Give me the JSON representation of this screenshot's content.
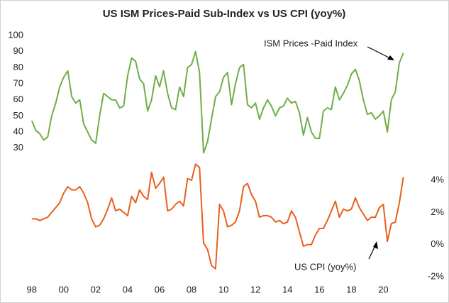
{
  "chart_data": {
    "type": "line",
    "title": "US ISM Prices-Paid Sub-Index vs US CPI (yoy%)",
    "annotations": [
      "ISM  Prices -Paid Index",
      "US CPI (yoy%)"
    ],
    "x": [
      1998,
      1998.25,
      1998.5,
      1998.75,
      1999,
      1999.25,
      1999.5,
      1999.75,
      2000,
      2000.25,
      2000.5,
      2000.75,
      2001,
      2001.25,
      2001.5,
      2001.75,
      2002,
      2002.25,
      2002.5,
      2002.75,
      2003,
      2003.25,
      2003.5,
      2003.75,
      2004,
      2004.25,
      2004.5,
      2004.75,
      2005,
      2005.25,
      2005.5,
      2005.75,
      2006,
      2006.25,
      2006.5,
      2006.75,
      2007,
      2007.25,
      2007.5,
      2007.75,
      2008,
      2008.25,
      2008.5,
      2008.75,
      2009,
      2009.25,
      2009.5,
      2009.75,
      2010,
      2010.25,
      2010.5,
      2010.75,
      2011,
      2011.25,
      2011.5,
      2011.75,
      2012,
      2012.25,
      2012.5,
      2012.75,
      2013,
      2013.25,
      2013.5,
      2013.75,
      2014,
      2014.25,
      2014.5,
      2014.75,
      2015,
      2015.25,
      2015.5,
      2015.75,
      2016,
      2016.25,
      2016.5,
      2016.75,
      2017,
      2017.25,
      2017.5,
      2017.75,
      2018,
      2018.25,
      2018.5,
      2018.75,
      2019,
      2019.25,
      2019.5,
      2019.75,
      2020,
      2020.25,
      2020.5,
      2020.75,
      2021,
      2021.25
    ],
    "series": [
      {
        "name": "ISM  Prices -Paid Index",
        "color": "#70ad47",
        "axis": "y",
        "values": [
          47,
          41,
          39,
          35,
          37,
          50,
          58,
          68,
          74,
          78,
          62,
          58,
          60,
          45,
          40,
          35,
          33,
          50,
          64,
          62,
          60,
          60,
          55,
          56,
          75,
          86,
          84,
          73,
          70,
          53,
          60,
          75,
          68,
          78,
          64,
          55,
          54,
          68,
          62,
          80,
          82,
          90,
          77,
          27,
          34,
          48,
          62,
          65,
          74,
          77,
          57,
          70,
          80,
          82,
          57,
          55,
          58,
          48,
          55,
          60,
          56,
          50,
          55,
          56,
          61,
          58,
          59,
          52,
          38,
          49,
          40,
          36,
          36,
          53,
          55,
          54,
          68,
          60,
          64,
          69,
          76,
          79,
          72,
          60,
          51,
          52,
          48,
          50,
          53,
          40,
          60,
          65,
          83,
          89
        ]
      },
      {
        "name": "US CPI (yoy%)",
        "color": "#e8601c",
        "axis": "y2",
        "values": [
          1.6,
          1.6,
          1.5,
          1.6,
          1.7,
          2.0,
          2.3,
          2.6,
          3.2,
          3.6,
          3.4,
          3.4,
          3.6,
          3.2,
          2.6,
          1.6,
          1.1,
          1.2,
          1.6,
          2.2,
          2.9,
          2.1,
          2.2,
          2.0,
          1.8,
          3.0,
          2.6,
          3.4,
          3.0,
          2.8,
          4.5,
          3.5,
          3.8,
          4.2,
          2.1,
          2.2,
          2.5,
          2.7,
          2.4,
          4.1,
          4.0,
          5.0,
          4.8,
          0.1,
          -0.3,
          -1.3,
          -1.5,
          2.5,
          2.1,
          1.1,
          1.2,
          1.4,
          2.1,
          3.6,
          3.8,
          3.1,
          2.7,
          1.7,
          1.8,
          1.8,
          1.7,
          1.4,
          1.5,
          1.3,
          1.4,
          2.1,
          1.7,
          0.8,
          -0.1,
          0.0,
          0.0,
          0.6,
          1.0,
          1.0,
          1.5,
          2.1,
          2.7,
          1.7,
          2.2,
          2.1,
          2.2,
          2.9,
          2.3,
          1.9,
          1.5,
          1.7,
          1.7,
          2.3,
          2.5,
          0.2,
          1.3,
          1.4,
          2.6,
          4.2
        ]
      }
    ],
    "xlim": [
      1997.7,
      2022.2
    ],
    "xticks": [
      {
        "value": 1998,
        "label": "98"
      },
      {
        "value": 2000,
        "label": "00"
      },
      {
        "value": 2002,
        "label": "02"
      },
      {
        "value": 2004,
        "label": "04"
      },
      {
        "value": 2006,
        "label": "06"
      },
      {
        "value": 2008,
        "label": "08"
      },
      {
        "value": 2010,
        "label": "10"
      },
      {
        "value": 2012,
        "label": "12"
      },
      {
        "value": 2014,
        "label": "14"
      },
      {
        "value": 2016,
        "label": "16"
      },
      {
        "value": 2018,
        "label": "18"
      },
      {
        "value": 2020,
        "label": "20"
      }
    ],
    "ylim": [
      -50,
      100
    ],
    "yticks": [
      30,
      40,
      50,
      60,
      70,
      80,
      90,
      100
    ],
    "y2lim": [
      -2,
      13
    ],
    "y2ticks": [
      {
        "value": -2,
        "label": "-2%"
      },
      {
        "value": 0,
        "label": "0%"
      },
      {
        "value": 2,
        "label": "2%"
      },
      {
        "value": 4,
        "label": "4%"
      }
    ]
  }
}
